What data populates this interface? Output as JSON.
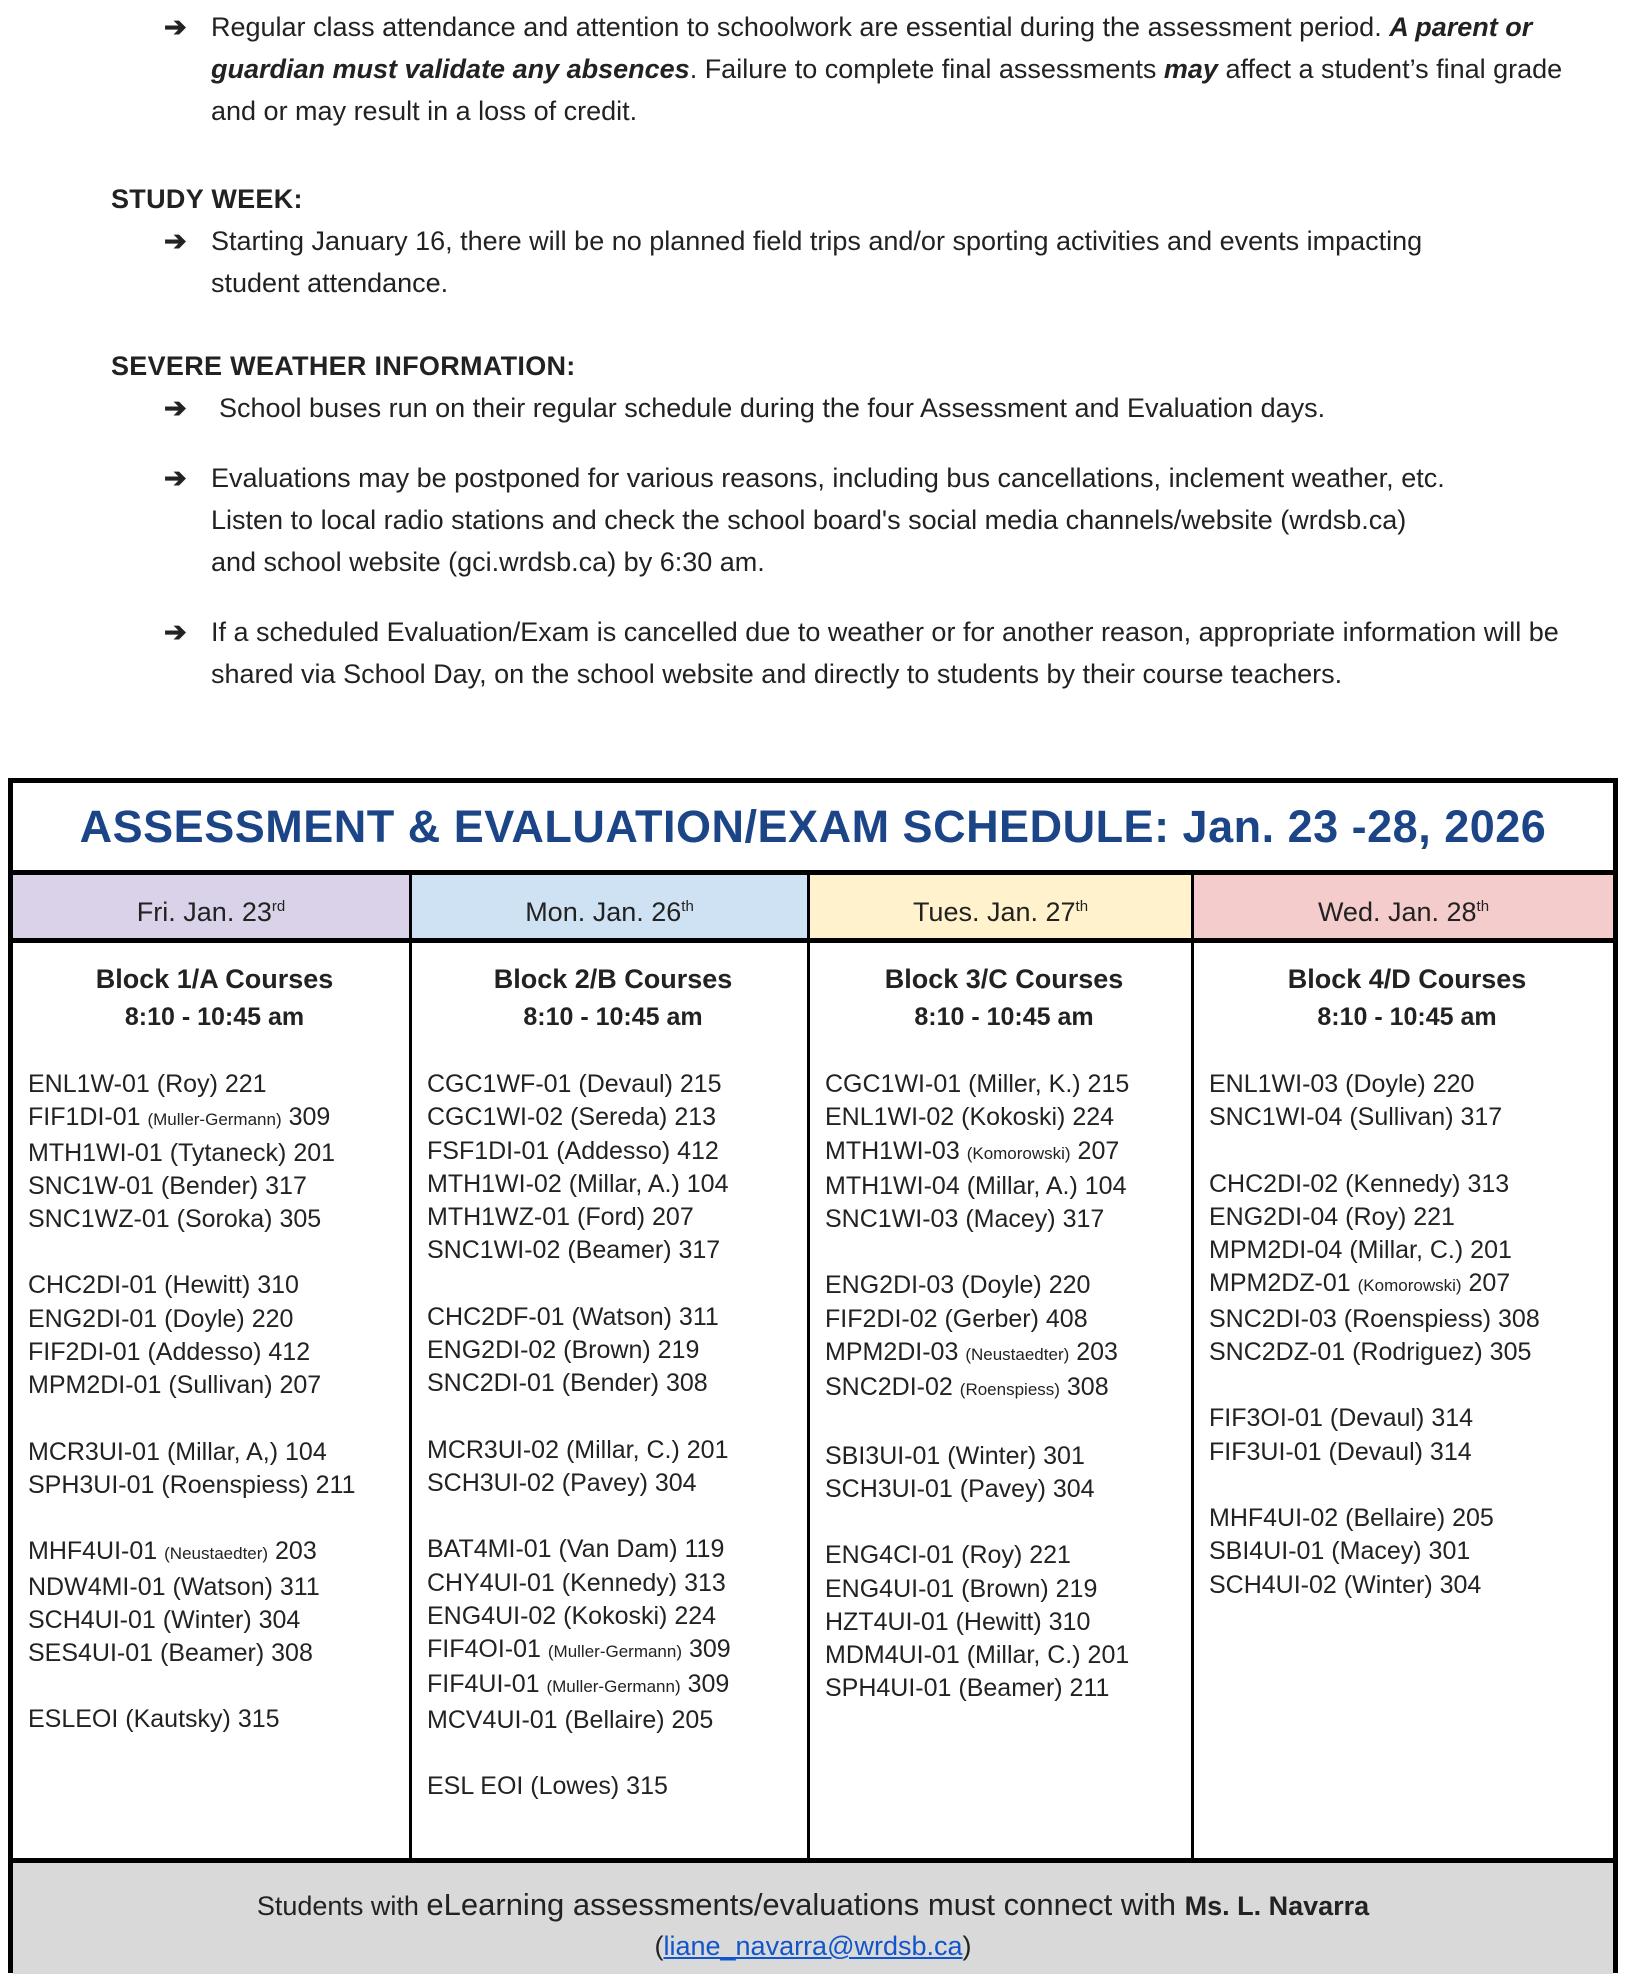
{
  "notes": {
    "arrow_icon": "➔",
    "attendance": [
      {
        "t": "Regular class attendance and attention to schoolwork are essential during the assessment period. "
      },
      {
        "t": "A parent or guardian must validate any absences",
        "b": true,
        "i": true
      },
      {
        "t": ". Failure to complete final assessments "
      },
      {
        "t": "may",
        "b": true,
        "i": true
      },
      {
        "t": " affect a student’s final grade and or may result in a loss of credit."
      }
    ],
    "study_week_heading": "STUDY WEEK:",
    "study_week": "Starting January 16, there will be no planned field trips and/or sporting activities and events impacting student attendance.",
    "weather_heading": "SEVERE WEATHER INFORMATION:",
    "weather": [
      "School buses run on their regular schedule during the four Assessment and Evaluation days.",
      "Evaluations may be postponed for various reasons, including bus cancellations, inclement weather, etc. Listen to local radio stations and check the school board's social media channels/website (wrdsb.ca) and school website (gci.wrdsb.ca) by 6:30 am.",
      "If a scheduled Evaluation/Exam is cancelled due to weather or for another reason, appropriate information will be shared via School Day, on the school website and directly to students by their course teachers."
    ]
  },
  "schedule": {
    "title": "ASSESSMENT & EVALUATION/EXAM SCHEDULE: Jan. 23 -28, 2026",
    "title_color": "#1c4587",
    "days": [
      {
        "label": "Fri. Jan. 23",
        "sup": "rd",
        "color": "#d9d2e9",
        "block": "Block 1/A Courses",
        "time": "8:10 - 10:45 am",
        "groups": [
          [
            {
              "c": "ENL1W-01",
              "t": "(Roy)",
              "r": "221"
            },
            {
              "c": "FIF1DI-01",
              "t": "(Muller-Germann)",
              "r": "309",
              "s": true
            },
            {
              "c": "MTH1WI-01",
              "t": "(Tytaneck)",
              "r": "201"
            },
            {
              "c": "SNC1W-01",
              "t": "(Bender)",
              "r": "317"
            },
            {
              "c": "SNC1WZ-01",
              "t": "(Soroka)",
              "r": "305"
            }
          ],
          [
            {
              "c": "CHC2DI-01",
              "t": "(Hewitt)",
              "r": "310"
            },
            {
              "c": "ENG2DI-01",
              "t": "(Doyle)",
              "r": "220"
            },
            {
              "c": "FIF2DI-01",
              "t": "(Addesso)",
              "r": "412"
            },
            {
              "c": "MPM2DI-01",
              "t": "(Sullivan)",
              "r": "207"
            }
          ],
          [
            {
              "c": "MCR3UI-01",
              "t": "(Millar, A,)",
              "r": "104"
            },
            {
              "c": "SPH3UI-01",
              "t": "(Roenspiess)",
              "r": "211"
            }
          ],
          [
            {
              "c": "MHF4UI-01",
              "t": "(Neustaedter)",
              "r": "203",
              "s": true
            },
            {
              "c": "NDW4MI-01",
              "t": "(Watson)",
              "r": "311"
            },
            {
              "c": "SCH4UI-01",
              "t": "(Winter)",
              "r": "304"
            },
            {
              "c": "SES4UI-01",
              "t": "(Beamer)",
              "r": "308"
            }
          ],
          [
            {
              "c": "ESLEOI",
              "t": "(Kautsky)",
              "r": "315"
            }
          ]
        ]
      },
      {
        "label": "Mon. Jan. 26",
        "sup": "th",
        "color": "#cfe2f3",
        "block": "Block 2/B Courses",
        "time": "8:10 - 10:45 am",
        "groups": [
          [
            {
              "c": "CGC1WF-01",
              "t": "(Devaul)",
              "r": "215"
            },
            {
              "c": "CGC1WI-02",
              "t": "(Sereda)",
              "r": "213"
            },
            {
              "c": "FSF1DI-01",
              "t": "(Addesso)",
              "r": "412"
            },
            {
              "c": "MTH1WI-02",
              "t": "(Millar, A.)",
              "r": "104"
            },
            {
              "c": "MTH1WZ-01",
              "t": "(Ford)",
              "r": "207"
            },
            {
              "c": "SNC1WI-02",
              "t": "(Beamer)",
              "r": "317"
            }
          ],
          [
            {
              "c": "CHC2DF-01",
              "t": "(Watson)",
              "r": "311"
            },
            {
              "c": "ENG2DI-02",
              "t": "(Brown)",
              "r": "219"
            },
            {
              "c": "SNC2DI-01",
              "t": "(Bender)",
              "r": "308"
            }
          ],
          [
            {
              "c": "MCR3UI-02",
              "t": "(Millar, C.)",
              "r": "201"
            },
            {
              "c": "SCH3UI-02",
              "t": "(Pavey)",
              "r": "304"
            }
          ],
          [
            {
              "c": "BAT4MI-01",
              "t": "(Van Dam)",
              "r": "119"
            },
            {
              "c": "CHY4UI-01",
              "t": "(Kennedy)",
              "r": "313"
            },
            {
              "c": "ENG4UI-02",
              "t": "(Kokoski)",
              "r": "224"
            },
            {
              "c": "FIF4OI-01",
              "t": "(Muller-Germann)",
              "r": "309",
              "s": true
            },
            {
              "c": "FIF4UI-01",
              "t": "(Muller-Germann)",
              "r": "309",
              "s": true
            },
            {
              "c": "MCV4UI-01",
              "t": "(Bellaire)",
              "r": "205"
            }
          ],
          [
            {
              "c": "ESL EOI",
              "t": "(Lowes)",
              "r": "315"
            }
          ]
        ]
      },
      {
        "label": "Tues. Jan. 27",
        "sup": "th",
        "color": "#fff2cc",
        "block": "Block 3/C  Courses",
        "time": "8:10 - 10:45 am",
        "groups": [
          [
            {
              "c": "CGC1WI-01",
              "t": "(Miller, K.)",
              "r": "215"
            },
            {
              "c": "ENL1WI-02",
              "t": "(Kokoski)",
              "r": "224"
            },
            {
              "c": "MTH1WI-03",
              "t": "(Komorowski)",
              "r": "207",
              "s": true
            },
            {
              "c": "MTH1WI-04",
              "t": "(Millar, A.)",
              "r": "104"
            },
            {
              "c": "SNC1WI-03",
              "t": "(Macey)",
              "r": "317"
            }
          ],
          [
            {
              "c": "ENG2DI-03",
              "t": "(Doyle)",
              "r": "220"
            },
            {
              "c": "FIF2DI-02",
              "t": "(Gerber)",
              "r": "408"
            },
            {
              "c": "MPM2DI-03",
              "t": "(Neustaedter)",
              "r": "203",
              "s": true
            },
            {
              "c": "SNC2DI-02",
              "t": "(Roenspiess)",
              "r": "308",
              "s": true
            }
          ],
          [
            {
              "c": "SBI3UI-01",
              "t": "(Winter)",
              "r": "301"
            },
            {
              "c": "SCH3UI-01",
              "t": "(Pavey)",
              "r": "304"
            }
          ],
          [
            {
              "c": "ENG4CI-01",
              "t": "(Roy)",
              "r": "221"
            },
            {
              "c": "ENG4UI-01",
              "t": "(Brown)",
              "r": "219"
            },
            {
              "c": "HZT4UI-01",
              "t": "(Hewitt)",
              "r": "310"
            },
            {
              "c": "MDM4UI-01",
              "t": "(Millar, C.)",
              "r": "201"
            },
            {
              "c": "SPH4UI-01",
              "t": "(Beamer)",
              "r": "211"
            }
          ]
        ]
      },
      {
        "label": "Wed. Jan. 28",
        "sup": "th",
        "color": "#f4cccc",
        "block": "Block 4/D Courses",
        "time": "8:10 - 10:45 am",
        "groups": [
          [
            {
              "c": "ENL1WI-03",
              "t": "(Doyle)",
              "r": "220"
            },
            {
              "c": "SNC1WI-04",
              "t": "(Sullivan)",
              "r": "317"
            }
          ],
          [
            {
              "c": "CHC2DI-02",
              "t": "(Kennedy)",
              "r": "313"
            },
            {
              "c": "ENG2DI-04",
              "t": "(Roy)",
              "r": "221"
            },
            {
              "c": "MPM2DI-04",
              "t": "(Millar, C.)",
              "r": "201"
            },
            {
              "c": "MPM2DZ-01",
              "t": "(Komorowski)",
              "r": "207",
              "s": true
            },
            {
              "c": "SNC2DI-03",
              "t": "(Roenspiess)",
              "r": "308"
            },
            {
              "c": "SNC2DZ-01",
              "t": "(Rodriguez)",
              "r": "305"
            }
          ],
          [
            {
              "c": "FIF3OI-01",
              "t": "(Devaul)",
              "r": "314"
            },
            {
              "c": "FIF3UI-01",
              "t": "(Devaul)",
              "r": "314"
            }
          ],
          [
            {
              "c": "MHF4UI-02",
              "t": "(Bellaire)",
              "r": "205"
            },
            {
              "c": "SBI4UI-01",
              "t": "(Macey)",
              "r": "301"
            },
            {
              "c": "SCH4UI-02",
              "t": "(Winter)",
              "r": "304"
            }
          ]
        ]
      }
    ],
    "footer": {
      "prefix": "Students with ",
      "middle": "eLearning assessments/evaluations must connect with ",
      "name": "Ms. L. Navarra",
      "email": "liane_navarra@wrdsb.ca",
      "footer_bg": "#d9d9d9",
      "link_color": "#1155cc"
    }
  }
}
